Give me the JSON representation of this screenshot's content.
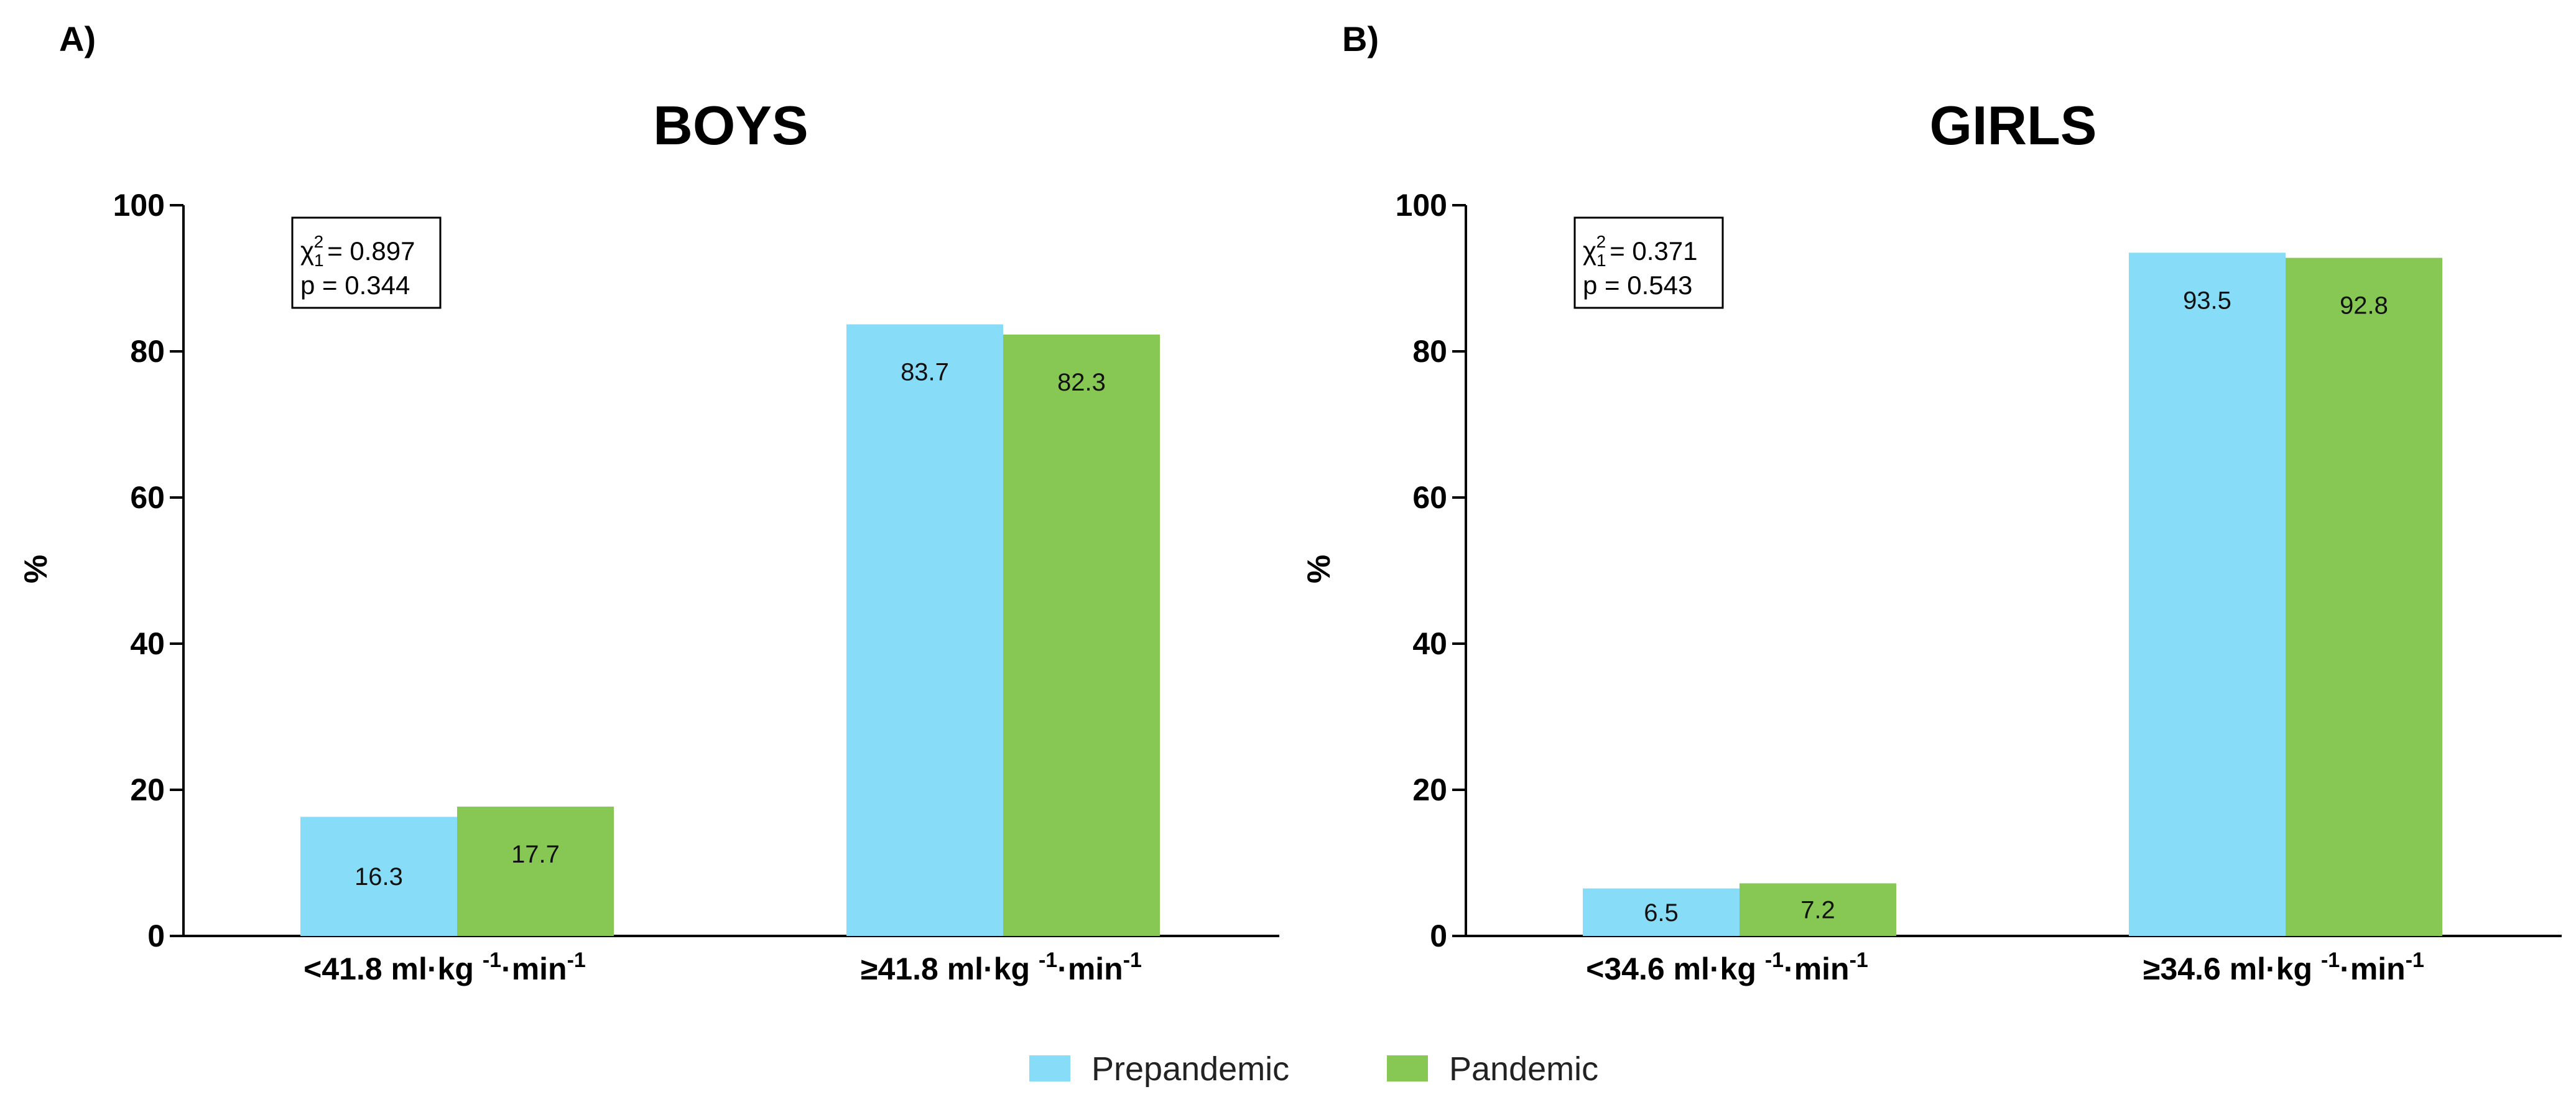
{
  "panels": [
    {
      "label": "A)"
    },
    {
      "label": "B)"
    }
  ],
  "legend": [
    {
      "name": "Prepandemic",
      "color": "#87dcf8"
    },
    {
      "name": "Pandemic",
      "color": "#86c853"
    }
  ],
  "stats": [
    {
      "chi_symbol": "χ",
      "chi_sub": "1",
      "chi_sup": "2",
      "chi_value": "= 0.897",
      "p_text": "p = 0.344"
    },
    {
      "chi_symbol": "χ",
      "chi_sub": "1",
      "chi_sup": "2",
      "chi_value": "= 0.371",
      "p_text": "p = 0.543"
    }
  ],
  "x_category_parts": [
    [
      {
        "pre": "<41.8 ml·kg ",
        "sup1": "-1",
        "mid": "·min",
        "sup2": "-1"
      },
      {
        "pre": "≥41.8 ml·kg ",
        "sup1": "-1",
        "mid": "·min",
        "sup2": "-1"
      }
    ],
    [
      {
        "pre": "<34.6 ml·kg ",
        "sup1": "-1",
        "mid": "·min",
        "sup2": "-1"
      },
      {
        "pre": "≥34.6 ml·kg ",
        "sup1": "-1",
        "mid": "·min",
        "sup2": "-1"
      }
    ]
  ],
  "chart_data": [
    {
      "type": "bar",
      "title": "BOYS",
      "xlabel": "",
      "ylabel": "%",
      "ylim": [
        0,
        100
      ],
      "yticks": [
        0,
        20,
        40,
        60,
        80,
        100
      ],
      "categories": [
        "<41.8 ml·kg -1·min -1",
        "≥41.8 ml·kg -1·min -1"
      ],
      "series": [
        {
          "name": "Prepandemic",
          "values": [
            16.3,
            83.7
          ]
        },
        {
          "name": "Pandemic",
          "values": [
            17.7,
            82.3
          ]
        }
      ],
      "grid": false,
      "legend": "bottom"
    },
    {
      "type": "bar",
      "title": "GIRLS",
      "xlabel": "",
      "ylabel": "%",
      "ylim": [
        0,
        100
      ],
      "yticks": [
        0,
        20,
        40,
        60,
        80,
        100
      ],
      "categories": [
        "<34.6 ml·kg -1·min -1",
        "≥34.6 ml·kg -1·min -1"
      ],
      "series": [
        {
          "name": "Prepandemic",
          "values": [
            6.5,
            93.5
          ]
        },
        {
          "name": "Pandemic",
          "values": [
            7.2,
            92.8
          ]
        }
      ],
      "grid": false,
      "legend": "bottom"
    }
  ]
}
